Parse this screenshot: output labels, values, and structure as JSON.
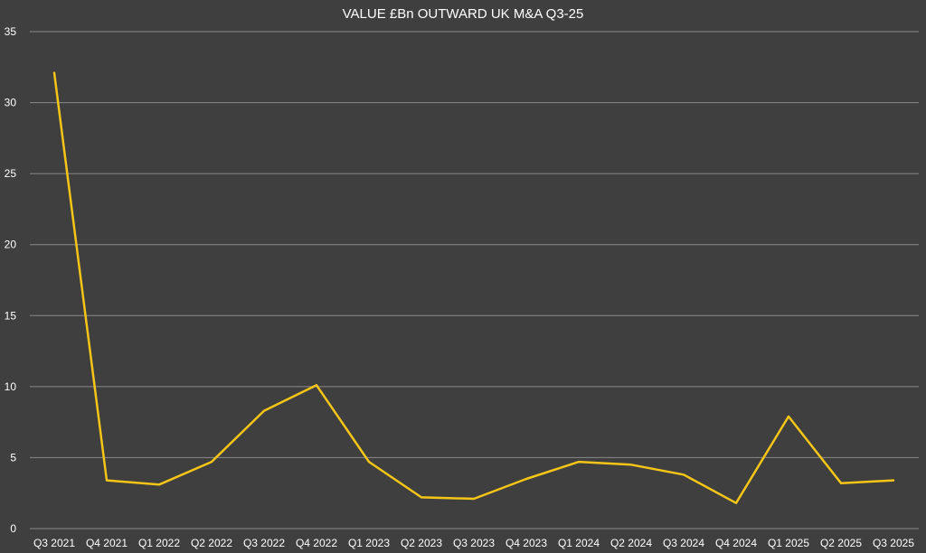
{
  "chart_data": {
    "type": "line",
    "title": "VALUE £Bn OUTWARD UK M&A Q3-25",
    "xlabel": "",
    "ylabel": "",
    "ylim": [
      0,
      35
    ],
    "yticks": [
      "0",
      "5",
      "10",
      "15",
      "20",
      "25",
      "30",
      "35"
    ],
    "categories": [
      "Q3 2021",
      "Q4 2021",
      "Q1 2022",
      "Q2 2022",
      "Q3 2022",
      "Q4 2022",
      "Q1 2023",
      "Q2 2023",
      "Q3 2023",
      "Q4 2023",
      "Q1 2024",
      "Q2 2024",
      "Q3 2024",
      "Q4 2024",
      "Q1 2025",
      "Q2 2025",
      "Q3 2025"
    ],
    "series": [
      {
        "color": "#f5c518",
        "values": [
          32.1,
          3.4,
          3.1,
          4.7,
          8.3,
          10.1,
          4.7,
          2.2,
          2.1,
          3.5,
          4.7,
          4.5,
          3.8,
          1.8,
          7.9,
          3.2,
          3.4
        ]
      }
    ],
    "grid": true,
    "legend": "none",
    "colors": {
      "background": "#3f3f3f",
      "gridline": "#8a8a8a",
      "text": "#ffffff"
    }
  }
}
